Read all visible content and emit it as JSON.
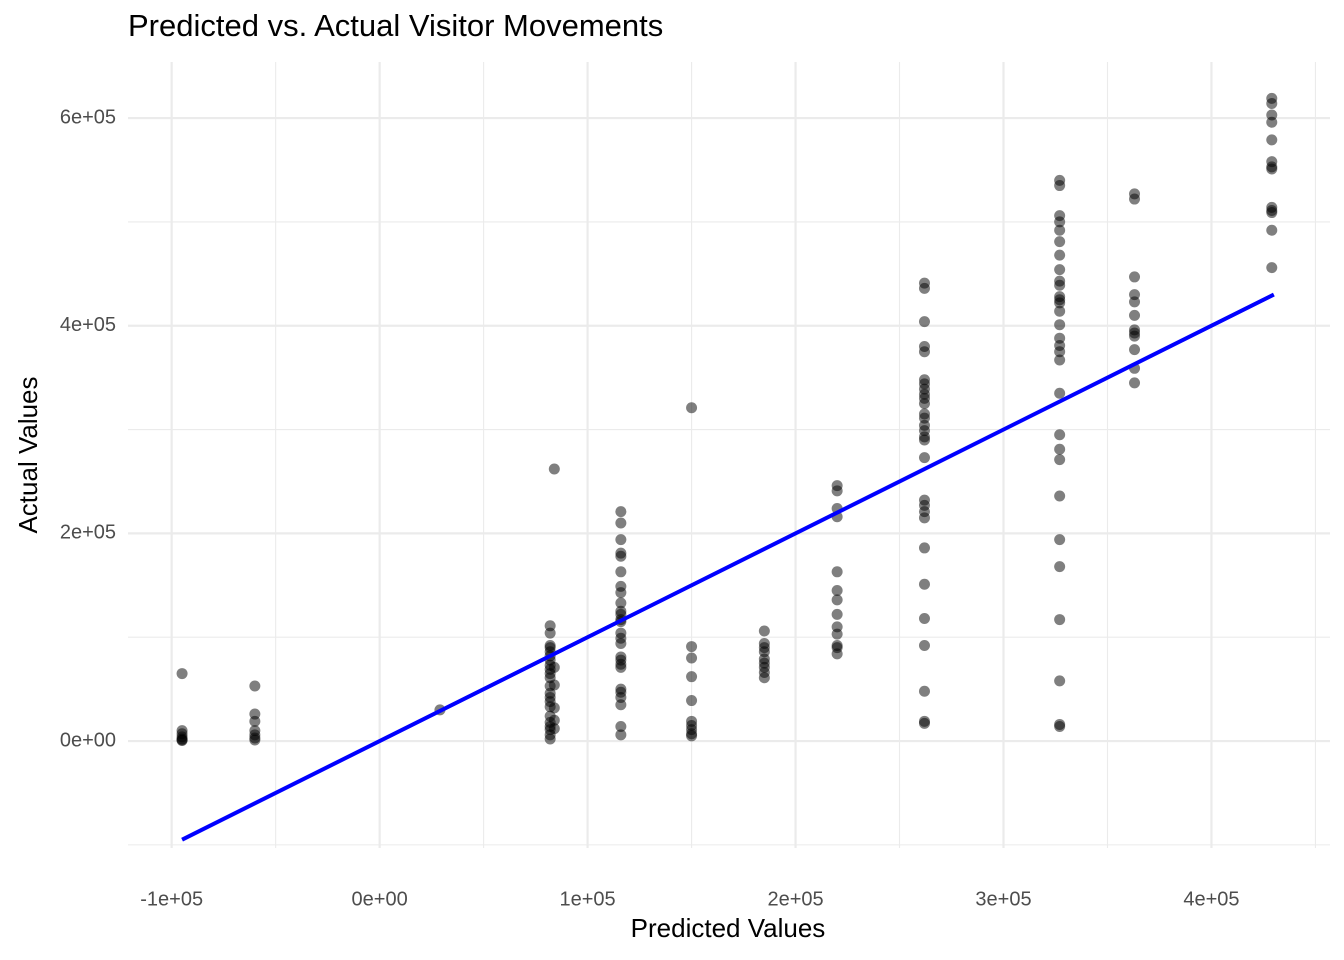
{
  "chart_data": {
    "type": "scatter",
    "title": "Predicted vs. Actual Visitor Movements",
    "x_label": "Predicted Values",
    "y_label": "Actual Values",
    "xlim": [
      -121000,
      457000
    ],
    "ylim": [
      -103000,
      654000
    ],
    "xticks": [
      {
        "value": -100000,
        "label": "-1e+05"
      },
      {
        "value": 0,
        "label": "0e+00"
      },
      {
        "value": 100000,
        "label": "1e+05"
      },
      {
        "value": 200000,
        "label": "2e+05"
      },
      {
        "value": 300000,
        "label": "3e+05"
      },
      {
        "value": 400000,
        "label": "4e+05"
      }
    ],
    "yticks": [
      {
        "value": 0,
        "label": "0e+00"
      },
      {
        "value": 200000,
        "label": "2e+05"
      },
      {
        "value": 400000,
        "label": "4e+05"
      },
      {
        "value": 600000,
        "label": "6e+05"
      }
    ],
    "x_minor_grid": [
      -50000,
      50000,
      150000,
      250000,
      350000,
      450000
    ],
    "y_minor_grid": [
      -100000,
      100000,
      300000,
      500000
    ],
    "grid": true,
    "series": [
      {
        "type": "scatter",
        "color": "#000000",
        "alpha": 0.5,
        "x": [
          -95000,
          -95000,
          -95000,
          -95000,
          -95000,
          -95000,
          -95000,
          -60000,
          -60000,
          -60000,
          -60000,
          -60000,
          -60000,
          -60000,
          29000,
          84000,
          84000,
          84000,
          84000,
          84000,
          84000,
          82000,
          82000,
          82000,
          82000,
          82000,
          82000,
          82000,
          82000,
          82000,
          82000,
          82000,
          82000,
          82000,
          82000,
          82000,
          82000,
          82000,
          82000,
          82000,
          82000,
          82000,
          82000,
          116000,
          116000,
          116000,
          116000,
          116000,
          116000,
          116000,
          116000,
          116000,
          116000,
          116000,
          116000,
          116000,
          116000,
          116000,
          116000,
          116000,
          116000,
          116000,
          116000,
          116000,
          116000,
          116000,
          116000,
          116000,
          116000,
          150000,
          150000,
          150000,
          150000,
          150000,
          150000,
          150000,
          150000,
          150000,
          150000,
          185000,
          185000,
          185000,
          185000,
          185000,
          185000,
          185000,
          185000,
          185000,
          220000,
          220000,
          220000,
          220000,
          220000,
          220000,
          220000,
          220000,
          220000,
          220000,
          220000,
          220000,
          220000,
          262000,
          262000,
          262000,
          262000,
          262000,
          262000,
          262000,
          262000,
          262000,
          262000,
          262000,
          262000,
          262000,
          262000,
          262000,
          262000,
          262000,
          262000,
          262000,
          262000,
          262000,
          262000,
          262000,
          262000,
          262000,
          262000,
          262000,
          262000,
          262000,
          327000,
          327000,
          327000,
          327000,
          327000,
          327000,
          327000,
          327000,
          327000,
          327000,
          327000,
          327000,
          327000,
          327000,
          327000,
          327000,
          327000,
          327000,
          327000,
          327000,
          327000,
          327000,
          327000,
          327000,
          327000,
          327000,
          327000,
          327000,
          327000,
          327000,
          363000,
          363000,
          363000,
          363000,
          363000,
          363000,
          363000,
          363000,
          363000,
          363000,
          363000,
          363000,
          429000,
          429000,
          429000,
          429000,
          429000,
          429000,
          429000,
          429000,
          429000,
          429000,
          429000,
          429000,
          429000
        ],
        "values": [
          65000,
          10000,
          7000,
          4000,
          2000,
          1000,
          500,
          53000,
          26000,
          19000,
          10000,
          6000,
          3000,
          1000,
          30000,
          262000,
          71000,
          54000,
          32000,
          20000,
          12000,
          111000,
          104000,
          92000,
          90000,
          86000,
          82000,
          78000,
          73000,
          69000,
          65000,
          61000,
          53000,
          46000,
          42000,
          38000,
          33000,
          24000,
          18000,
          14000,
          11000,
          6000,
          2000,
          221000,
          210000,
          194000,
          181000,
          178000,
          163000,
          149000,
          143000,
          133000,
          125000,
          122000,
          117000,
          115000,
          104000,
          99000,
          94000,
          81000,
          78000,
          74000,
          71000,
          50000,
          47000,
          42000,
          35000,
          14000,
          6000,
          321000,
          91000,
          80000,
          62000,
          39000,
          19000,
          15000,
          11000,
          7000,
          5000,
          106000,
          94000,
          90000,
          86000,
          79000,
          75000,
          71000,
          66000,
          61000,
          246000,
          241000,
          224000,
          216000,
          163000,
          145000,
          136000,
          122000,
          110000,
          103000,
          92000,
          90000,
          84000,
          441000,
          436000,
          404000,
          380000,
          375000,
          348000,
          344000,
          339000,
          334000,
          330000,
          325000,
          315000,
          311000,
          304000,
          299000,
          293000,
          290000,
          273000,
          232000,
          227000,
          221000,
          215000,
          186000,
          151000,
          118000,
          92000,
          48000,
          19000,
          17000,
          540000,
          535000,
          506000,
          500000,
          492000,
          481000,
          468000,
          454000,
          443000,
          439000,
          428000,
          425000,
          422000,
          414000,
          401000,
          388000,
          381000,
          375000,
          367000,
          335000,
          295000,
          281000,
          271000,
          236000,
          194000,
          168000,
          117000,
          58000,
          16000,
          14000,
          527000,
          522000,
          447000,
          430000,
          423000,
          410000,
          396000,
          393000,
          390000,
          377000,
          359000,
          345000,
          619000,
          614000,
          603000,
          596000,
          579000,
          558000,
          553000,
          551000,
          514000,
          511000,
          509000,
          492000,
          456000
        ]
      },
      {
        "type": "line",
        "color": "#0000ff",
        "x": [
          -95000,
          430000
        ],
        "values": [
          -95000,
          430000
        ]
      }
    ]
  }
}
